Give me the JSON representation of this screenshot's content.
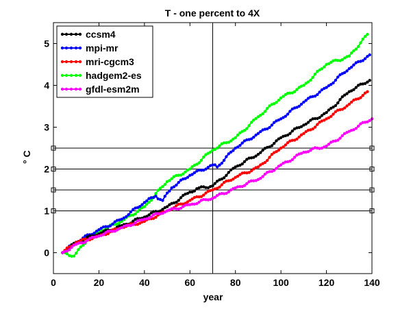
{
  "chart_data": {
    "type": "line",
    "title": "T - one percent to 4X",
    "xlabel": "year",
    "ylabel": "° C",
    "xlim": [
      0,
      140
    ],
    "ylim": [
      -0.5,
      5.5
    ],
    "xticks": [
      0,
      20,
      40,
      60,
      80,
      100,
      120,
      140
    ],
    "yticks": [
      0,
      1,
      2,
      3,
      4,
      5
    ],
    "grid": false,
    "legend_position": "top-left",
    "reference_lines": {
      "horizontal": [
        1.0,
        1.5,
        2.0,
        2.5
      ],
      "vertical": [
        70
      ]
    },
    "series": [
      {
        "name": "ccsm4",
        "color": "#000000",
        "points": [
          [
            4,
            0.0
          ],
          [
            10,
            0.25
          ],
          [
            20,
            0.45
          ],
          [
            30,
            0.65
          ],
          [
            40,
            0.85
          ],
          [
            50,
            1.1
          ],
          [
            60,
            1.45
          ],
          [
            64,
            1.55
          ],
          [
            70,
            1.6
          ],
          [
            80,
            2.05
          ],
          [
            90,
            2.35
          ],
          [
            100,
            2.75
          ],
          [
            110,
            3.05
          ],
          [
            120,
            3.35
          ],
          [
            130,
            3.85
          ],
          [
            139,
            4.12
          ]
        ]
      },
      {
        "name": "mpi-mr",
        "color": "#0000ff",
        "points": [
          [
            4,
            0.0
          ],
          [
            10,
            0.25
          ],
          [
            20,
            0.55
          ],
          [
            30,
            0.8
          ],
          [
            40,
            1.2
          ],
          [
            45,
            1.35
          ],
          [
            48,
            1.25
          ],
          [
            52,
            1.55
          ],
          [
            60,
            1.85
          ],
          [
            70,
            2.1
          ],
          [
            72,
            2.05
          ],
          [
            80,
            2.5
          ],
          [
            90,
            2.85
          ],
          [
            100,
            3.2
          ],
          [
            110,
            3.6
          ],
          [
            120,
            3.95
          ],
          [
            130,
            4.4
          ],
          [
            139,
            4.73
          ]
        ]
      },
      {
        "name": "mri-cgcm3",
        "color": "#ff0000",
        "points": [
          [
            4,
            0.0
          ],
          [
            10,
            0.25
          ],
          [
            20,
            0.4
          ],
          [
            30,
            0.6
          ],
          [
            40,
            0.75
          ],
          [
            50,
            1.0
          ],
          [
            60,
            1.25
          ],
          [
            70,
            1.5
          ],
          [
            80,
            1.8
          ],
          [
            90,
            2.05
          ],
          [
            100,
            2.5
          ],
          [
            110,
            2.85
          ],
          [
            120,
            3.2
          ],
          [
            130,
            3.55
          ],
          [
            138,
            3.85
          ]
        ]
      },
      {
        "name": "hadgem2-es",
        "color": "#00ff00",
        "points": [
          [
            4,
            0.0
          ],
          [
            9,
            -0.08
          ],
          [
            15,
            0.3
          ],
          [
            20,
            0.5
          ],
          [
            30,
            0.75
          ],
          [
            40,
            1.1
          ],
          [
            50,
            1.7
          ],
          [
            60,
            2.0
          ],
          [
            70,
            2.45
          ],
          [
            80,
            2.75
          ],
          [
            90,
            3.25
          ],
          [
            100,
            3.7
          ],
          [
            110,
            4.0
          ],
          [
            120,
            4.5
          ],
          [
            130,
            4.7
          ],
          [
            138,
            5.22
          ]
        ]
      },
      {
        "name": "gfdl-esm2m",
        "color": "#ff00ff",
        "points": [
          [
            4,
            0.0
          ],
          [
            10,
            0.2
          ],
          [
            20,
            0.4
          ],
          [
            30,
            0.6
          ],
          [
            40,
            0.8
          ],
          [
            50,
            1.0
          ],
          [
            60,
            1.15
          ],
          [
            70,
            1.3
          ],
          [
            80,
            1.55
          ],
          [
            90,
            1.75
          ],
          [
            100,
            2.1
          ],
          [
            110,
            2.4
          ],
          [
            120,
            2.55
          ],
          [
            130,
            2.9
          ],
          [
            140,
            3.2
          ]
        ]
      }
    ]
  }
}
